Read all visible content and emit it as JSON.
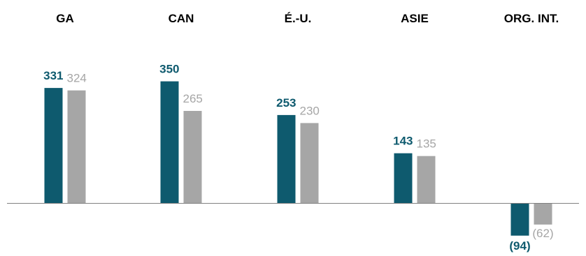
{
  "chart_data": {
    "type": "bar",
    "categories": [
      "GA",
      "CAN",
      "É.-U.",
      "ASIE",
      "ORG. INT."
    ],
    "series": [
      {
        "values": [
          331,
          350,
          253,
          143,
          -94
        ],
        "labels": [
          "331",
          "350",
          "253",
          "143",
          "(94)"
        ],
        "color": "#0e5a6e",
        "label_color": "#0e5a6e",
        "label_weight": "bold"
      },
      {
        "values": [
          324,
          265,
          230,
          135,
          -62
        ],
        "labels": [
          "324",
          "265",
          "230",
          "135",
          "(62)"
        ],
        "color": "#a6a6a6",
        "label_color": "#a6a6a6",
        "label_weight": "normal"
      }
    ],
    "title": "",
    "xlabel": "",
    "ylabel": "",
    "ylim": [
      -100,
      350
    ],
    "grid": false,
    "legend": "none",
    "baseline_color": "#808080"
  }
}
